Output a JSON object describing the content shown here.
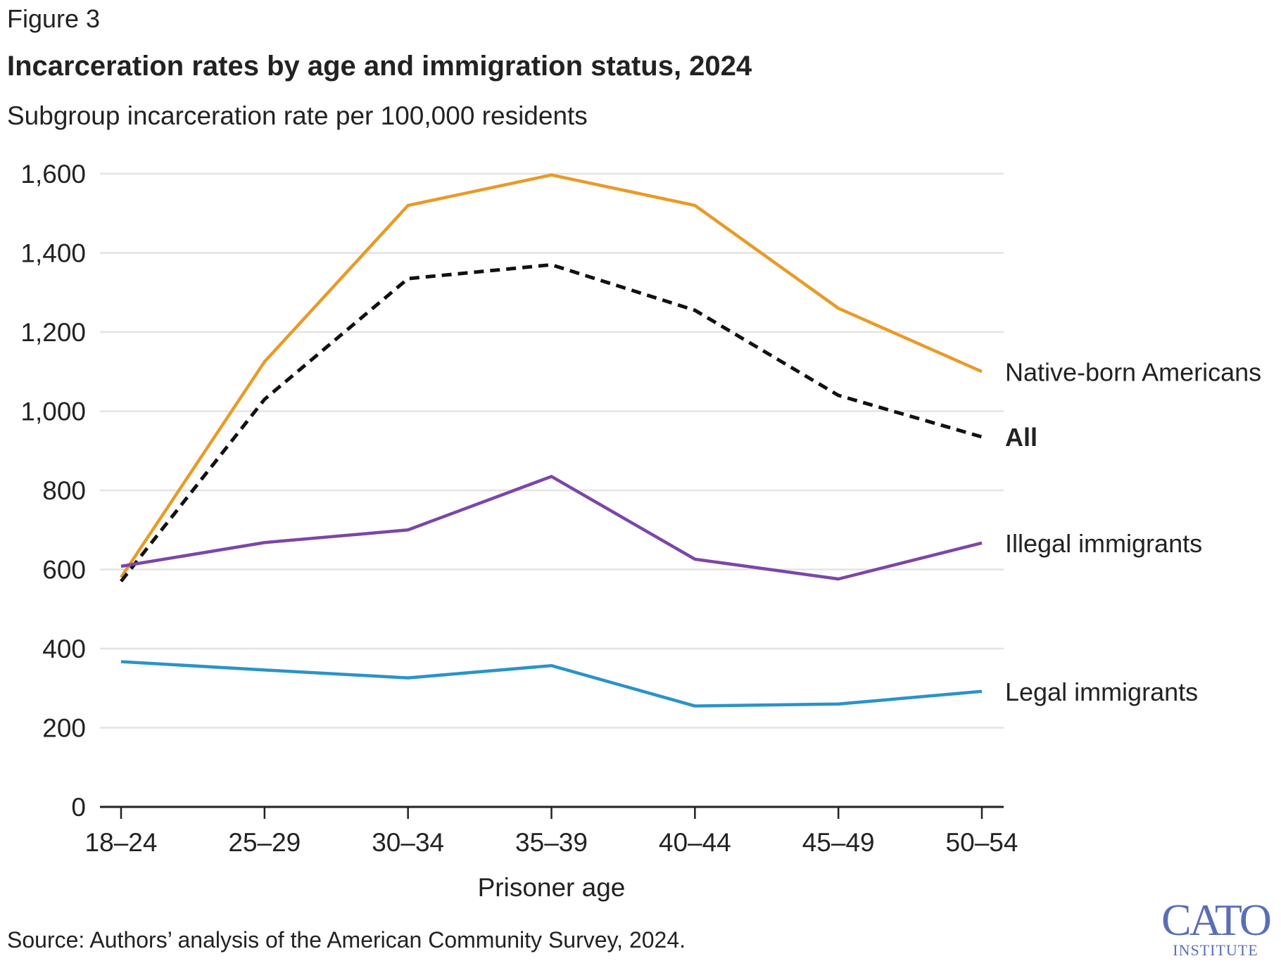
{
  "figure_label": "Figure 3",
  "source": "Source: Authors’ analysis of the American Community Survey, 2024.",
  "logo": {
    "line1": "CATO",
    "line2": "INSTITUTE"
  },
  "chart_data": {
    "type": "line",
    "title": "Incarceration rates by age and immigration status, 2024",
    "subtitle": "Subgroup incarceration rate per 100,000 residents",
    "xlabel": "Prisoner age",
    "ylabel": "",
    "categories": [
      "18–24",
      "25–29",
      "30–34",
      "35–39",
      "40–44",
      "45–49",
      "50–54"
    ],
    "ylim": [
      0,
      1600
    ],
    "yticks": [
      0,
      200,
      400,
      600,
      800,
      1000,
      1200,
      1400,
      1600
    ],
    "ytick_labels": [
      "0",
      "200",
      "400",
      "600",
      "800",
      "1,000",
      "1,200",
      "1,400",
      "1,600"
    ],
    "grid": true,
    "legend": "direct labels at right end of lines",
    "series": [
      {
        "name": "Native-born Americans",
        "color": "#e99a26",
        "dashed": false,
        "bold": false,
        "values": [
          580,
          1125,
          1520,
          1597,
          1520,
          1260,
          1100
        ]
      },
      {
        "name": "All",
        "color": "#111111",
        "dashed": true,
        "bold": true,
        "values": [
          570,
          1030,
          1335,
          1370,
          1255,
          1040,
          935
        ]
      },
      {
        "name": "Illegal immigrants",
        "color": "#7b46a8",
        "dashed": false,
        "bold": false,
        "values": [
          608,
          668,
          700,
          835,
          626,
          576,
          667
        ]
      },
      {
        "name": "Legal immigrants",
        "color": "#2a93c9",
        "dashed": false,
        "bold": false,
        "values": [
          367,
          346,
          326,
          357,
          255,
          260,
          292
        ]
      }
    ]
  }
}
